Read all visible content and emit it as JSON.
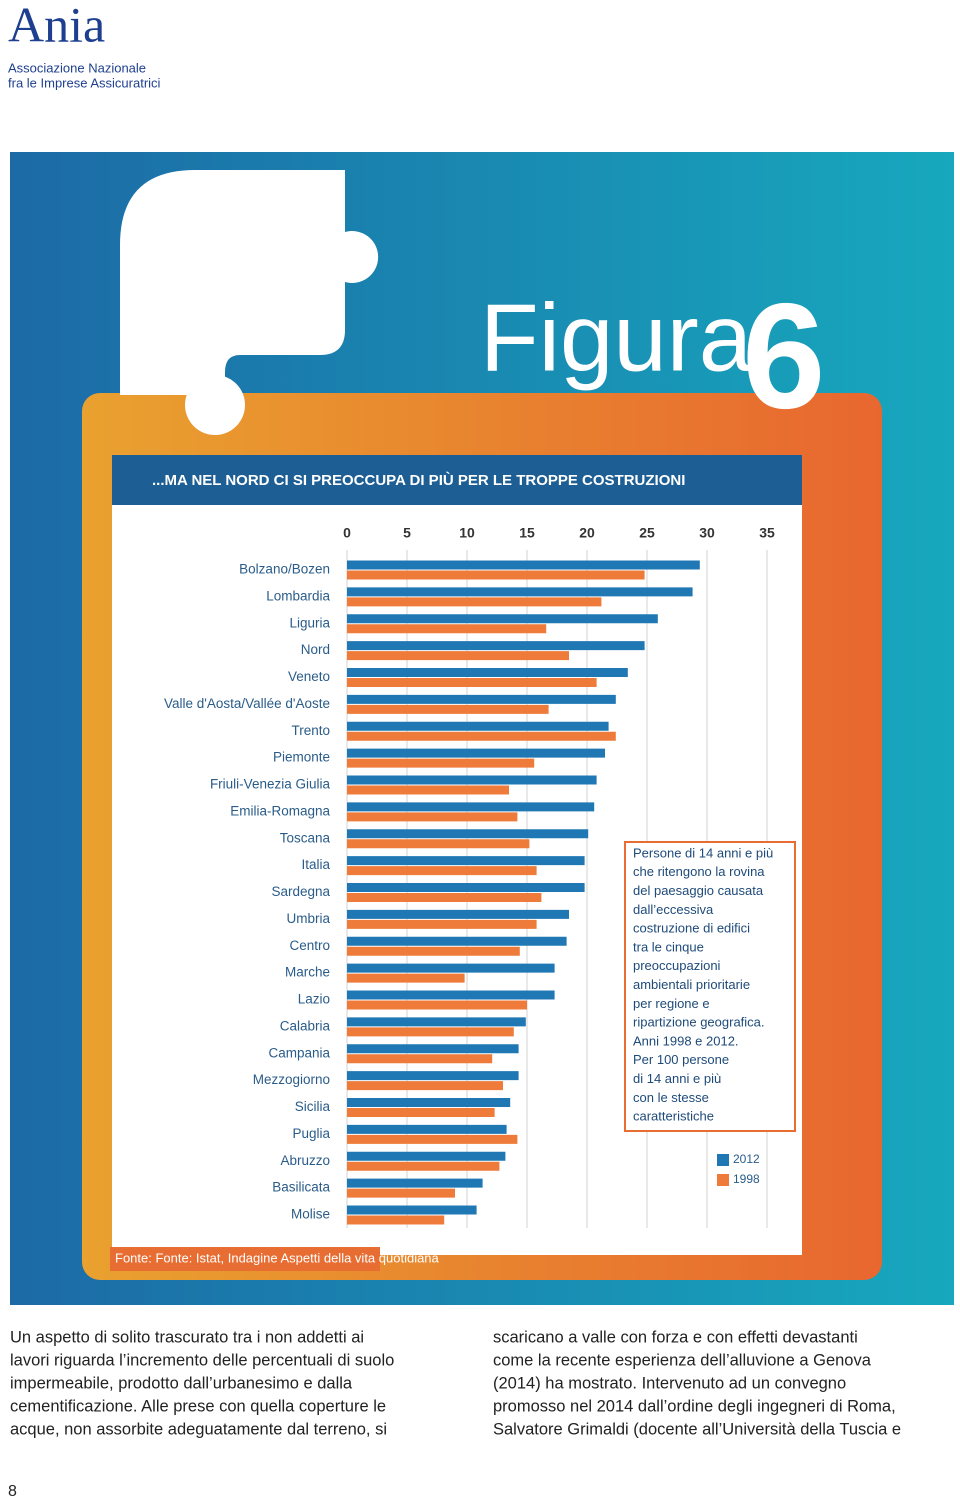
{
  "header": {
    "logo": "Ania",
    "subtitle_lines": [
      "Associazione Nazionale",
      "fra le Imprese Assicuratrici"
    ]
  },
  "figure": {
    "label": "Figura",
    "number": "6"
  },
  "chart_data": {
    "type": "bar",
    "orientation": "horizontal",
    "title": "...MA NEL NORD CI SI PREOCCUPA DI PIÙ PER LE TROPPE COSTRUZIONI",
    "categories": [
      "Bolzano/Bozen",
      "Lombardia",
      "Liguria",
      "Nord",
      "Veneto",
      "Valle d'Aosta/Vallée d'Aoste",
      "Trento",
      "Piemonte",
      "Friuli-Venezia Giulia",
      "Emilia-Romagna",
      "Toscana",
      "Italia",
      "Sardegna",
      "Umbria",
      "Centro",
      "Marche",
      "Lazio",
      "Calabria",
      "Campania",
      "Mezzogiorno",
      "Sicilia",
      "Puglia",
      "Abruzzo",
      "Basilicata",
      "Molise"
    ],
    "series": [
      {
        "name": "2012",
        "color": "#1f78b4",
        "values": [
          29.4,
          28.8,
          25.9,
          24.8,
          23.4,
          22.4,
          21.8,
          21.5,
          20.8,
          20.6,
          20.1,
          19.8,
          19.8,
          18.5,
          18.3,
          17.3,
          17.3,
          14.9,
          14.3,
          14.3,
          13.6,
          13.3,
          13.2,
          11.3,
          10.8
        ]
      },
      {
        "name": "1998",
        "color": "#ef7b3a",
        "values": [
          24.8,
          21.2,
          16.6,
          18.5,
          20.8,
          16.8,
          22.4,
          15.6,
          13.5,
          14.2,
          15.2,
          15.8,
          16.2,
          15.8,
          14.4,
          9.8,
          15.0,
          13.9,
          12.1,
          13.0,
          12.3,
          14.2,
          12.7,
          9.0,
          8.1
        ]
      }
    ],
    "xlim": [
      0,
      35
    ],
    "xticks": [
      0,
      5,
      10,
      15,
      20,
      25,
      30,
      35
    ],
    "grid": true,
    "annotation_lines": [
      "Persone di 14 anni e più",
      "che ritengono la rovina",
      "del paesaggio causata",
      "dall’eccessiva",
      "costruzione di edifici",
      "tra le cinque",
      "preoccupazioni",
      "ambientali prioritarie",
      "per regione e",
      "ripartizione geografica.",
      "Anni 1998 e 2012.",
      "Per 100 persone",
      "di 14 anni e più",
      "con le stesse",
      "caratteristiche"
    ],
    "source": "Fonte: Fonte: Istat, Indagine Aspetti della vita quotidiana"
  },
  "body": {
    "columns": [
      [
        "Un aspetto di solito trascurato tra i non addetti ai",
        "lavori riguarda l’incremento delle percentuali di suolo",
        "impermeabile, prodotto dall’urbanesimo e dalla",
        "cementificazione. Alle prese con quella coperture le",
        "acque, non assorbite adeguatamente dal terreno, si"
      ],
      [
        "scaricano a valle con forza e con effetti devastanti",
        "come la recente esperienza dell’alluvione a Genova",
        "(2014) ha mostrato. Intervenuto ad un convegno",
        "promosso nel 2014 dall’ordine degli ingegneri di Roma,",
        "Salvatore Grimaldi (docente all’Università della Tuscia e"
      ]
    ]
  },
  "page_number": "8"
}
